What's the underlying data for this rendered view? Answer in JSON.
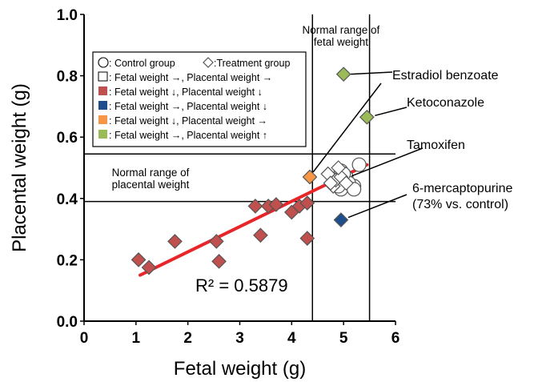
{
  "chart_data": {
    "type": "scatter",
    "xlabel": "Fetal weight (g)",
    "ylabel": "Placental weight (g)",
    "xlim": [
      0,
      6
    ],
    "ylim": [
      0,
      1.0
    ],
    "x_ticks": [
      "0",
      "1",
      "2",
      "3",
      "4",
      "5",
      "6"
    ],
    "y_ticks": [
      "0.0",
      "0.2",
      "0.4",
      "0.6",
      "0.8",
      "1.0"
    ],
    "grid": false,
    "legend_position": "top-left",
    "legend": [
      {
        "marker": "circle",
        "text": ": Control group"
      },
      {
        "marker": "diamond",
        "text": ":Treatment group"
      },
      {
        "marker": "square-white",
        "color": "#ffffff",
        "text": ": Fetal weight →, Placental weight →"
      },
      {
        "marker": "square-red",
        "color": "#c0504d",
        "text": ": Fetal weight ↓, Placental weight ↓"
      },
      {
        "marker": "square-blue",
        "color": "#1f4e8c",
        "text": ": Fetal weight →, Placental weight ↓"
      },
      {
        "marker": "square-orange",
        "color": "#f79646",
        "text": ": Fetal weight ↓, Placental weight →"
      },
      {
        "marker": "square-green",
        "color": "#9bbb59",
        "text": ": Fetal weight →, Placental weight ↑"
      }
    ],
    "series": [
      {
        "marker": "circle",
        "color": "#ffffff",
        "x": [
          4.95,
          5.05,
          5.2,
          4.85,
          5.1,
          4.95,
          5.0,
          4.9,
          5.3,
          5.2
        ],
        "y": [
          0.49,
          0.47,
          0.44,
          0.46,
          0.45,
          0.43,
          0.48,
          0.44,
          0.51,
          0.43
        ]
      },
      {
        "marker": "diamond",
        "color": "#ffffff",
        "x": [
          4.7,
          4.8,
          4.85,
          4.75,
          4.95,
          5.05,
          4.9
        ],
        "y": [
          0.48,
          0.44,
          0.46,
          0.45,
          0.47,
          0.45,
          0.5
        ]
      },
      {
        "marker": "diamond",
        "color": "#c0504d",
        "x": [
          1.05,
          1.25,
          1.75,
          2.55,
          2.6,
          3.3,
          3.4,
          3.55,
          3.7,
          4.0,
          4.15,
          4.3,
          4.3
        ],
        "y": [
          0.2,
          0.175,
          0.26,
          0.26,
          0.195,
          0.375,
          0.28,
          0.375,
          0.38,
          0.355,
          0.375,
          0.385,
          0.27
        ]
      },
      {
        "marker": "diamond",
        "color": "#1f4e8c",
        "x": [
          4.95
        ],
        "y": [
          0.33
        ]
      },
      {
        "marker": "diamond",
        "color": "#f79646",
        "x": [
          4.35
        ],
        "y": [
          0.47
        ]
      },
      {
        "marker": "diamond",
        "color": "#9bbb59",
        "x": [
          5.0,
          5.45
        ],
        "y": [
          0.805,
          0.665
        ]
      }
    ],
    "trendline": {
      "x": [
        1.08,
        5.45
      ],
      "y": [
        0.15,
        0.51
      ],
      "color": "#e8262a"
    },
    "r_squared_label": "R² = 0.5879",
    "reference_lines": {
      "vertical_x": [
        4.4,
        5.5
      ],
      "horizontal_y": [
        0.545,
        0.39
      ]
    },
    "range_labels": {
      "fetal": [
        "Normal range of",
        "fetal weight"
      ],
      "placental": [
        "Normal range of",
        "placental weight"
      ]
    },
    "annotations": [
      {
        "text": "Estradiol benzoate",
        "x": 5.0,
        "y": 0.805,
        "target_y": 0.47
      },
      {
        "text": "Ketoconazole",
        "x": 5.45,
        "y": 0.665
      },
      {
        "text": "Tamoxifen",
        "x": 4.95,
        "y": 0.46
      },
      {
        "text": "6-mercaptopurine",
        "text2": "(73% vs. control)",
        "x": 4.95,
        "y": 0.33
      }
    ]
  }
}
